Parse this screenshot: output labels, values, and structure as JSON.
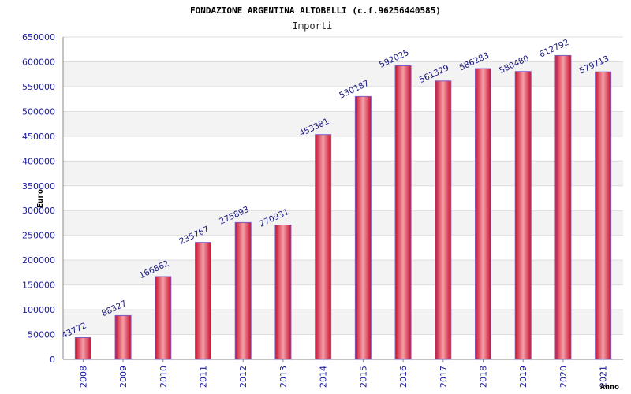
{
  "chart_data": {
    "type": "bar",
    "title": "FONDAZIONE ARGENTINA ALTOBELLI (c.f.96256440585)",
    "subtitle": "Importi",
    "xlabel": "Anno",
    "ylabel": "Euro",
    "ylim": [
      0,
      650000
    ],
    "ytick_step": 50000,
    "grid": true,
    "categories": [
      "2008",
      "2009",
      "2010",
      "2011",
      "2012",
      "2013",
      "2014",
      "2015",
      "2016",
      "2017",
      "2018",
      "2019",
      "2020",
      "2021"
    ],
    "values": [
      43772,
      88327,
      166862,
      235767,
      275893,
      270931,
      453381,
      530187,
      592025,
      561329,
      586283,
      580480,
      612792,
      579713
    ],
    "colors": {
      "bar_dark": "#c8102e",
      "bar_light": "#f4a0a8",
      "bar_edge": "#7a5cc0",
      "axis_text": "#1a1aa0",
      "label_text": "#1a1a80",
      "band": "#f3f3f3",
      "gridline": "#dddddd"
    }
  }
}
